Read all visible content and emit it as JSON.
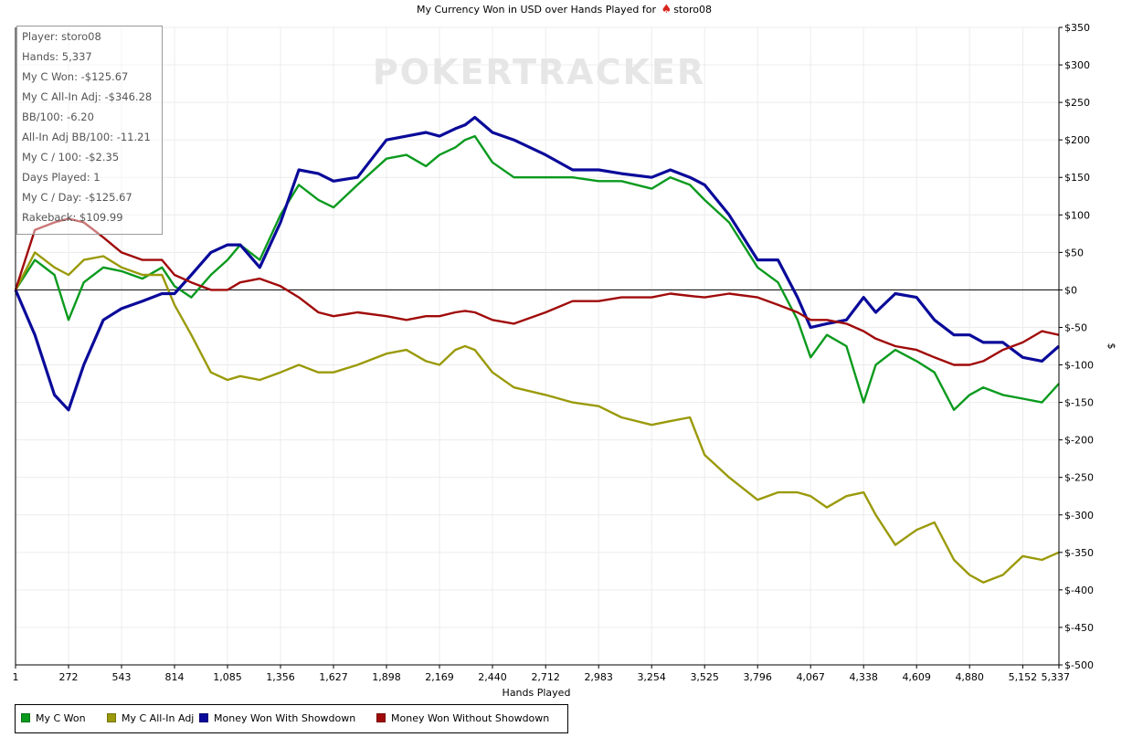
{
  "chart_data": {
    "type": "line",
    "title_prefix": "My Currency Won in USD over Hands Played for",
    "title_player": "storo08",
    "title_icon": "spade-icon",
    "watermark": "POKERTRACKER",
    "xlabel": "Hands Played",
    "ylabel": "$",
    "xlim": [
      1,
      5337
    ],
    "ylim": [
      -500,
      350
    ],
    "x_ticks": [
      1,
      272,
      543,
      814,
      1085,
      1356,
      1627,
      1898,
      2169,
      2440,
      2712,
      2983,
      3254,
      3525,
      3796,
      4067,
      4338,
      4609,
      4880,
      5152,
      5337
    ],
    "x_tick_labels": [
      "1",
      "272",
      "543",
      "814",
      "1,085",
      "1,356",
      "1,627",
      "1,898",
      "2,169",
      "2,440",
      "2,712",
      "2,983",
      "3,254",
      "3,525",
      "3,796",
      "4,067",
      "4,338",
      "4,609",
      "4,880",
      "5,152",
      "5,337"
    ],
    "y_ticks": [
      350,
      300,
      250,
      200,
      150,
      100,
      50,
      0,
      -50,
      -100,
      -150,
      -200,
      -250,
      -300,
      -350,
      -400,
      -450,
      -500
    ],
    "y_tick_labels": [
      "$350",
      "$300",
      "$250",
      "$200",
      "$150",
      "$100",
      "$50",
      "$0",
      "$-50",
      "$-100",
      "$-150",
      "$-200",
      "$-250",
      "$-300",
      "$-350",
      "$-400",
      "$-450",
      "$-500"
    ],
    "grid": true,
    "legend_position": "bottom-left",
    "x": [
      1,
      100,
      200,
      272,
      350,
      450,
      543,
      650,
      750,
      814,
      900,
      1000,
      1085,
      1150,
      1250,
      1356,
      1450,
      1550,
      1627,
      1750,
      1898,
      2000,
      2100,
      2169,
      2250,
      2300,
      2350,
      2440,
      2550,
      2712,
      2850,
      2983,
      3100,
      3254,
      3350,
      3450,
      3525,
      3650,
      3796,
      3900,
      4000,
      4067,
      4150,
      4250,
      4338,
      4400,
      4500,
      4609,
      4700,
      4800,
      4880,
      4950,
      5050,
      5152,
      5250,
      5337
    ],
    "series": [
      {
        "name": "My C Won",
        "color": "#0a9a1e",
        "values": [
          0,
          40,
          20,
          -40,
          10,
          30,
          25,
          15,
          30,
          5,
          -10,
          20,
          40,
          60,
          40,
          100,
          140,
          120,
          110,
          140,
          175,
          180,
          165,
          180,
          190,
          200,
          205,
          170,
          150,
          150,
          150,
          145,
          145,
          135,
          150,
          140,
          120,
          90,
          30,
          10,
          -40,
          -90,
          -60,
          -75,
          -150,
          -100,
          -80,
          -95,
          -110,
          -160,
          -140,
          -130,
          -140,
          -145,
          -150,
          -125
        ]
      },
      {
        "name": "My C All-In Adj",
        "color": "#9a9a0a",
        "values": [
          0,
          50,
          30,
          20,
          40,
          45,
          30,
          20,
          20,
          -20,
          -60,
          -110,
          -120,
          -115,
          -120,
          -110,
          -100,
          -110,
          -110,
          -100,
          -85,
          -80,
          -95,
          -100,
          -80,
          -75,
          -80,
          -110,
          -130,
          -140,
          -150,
          -155,
          -170,
          -180,
          -175,
          -170,
          -220,
          -250,
          -280,
          -270,
          -270,
          -275,
          -290,
          -275,
          -270,
          -300,
          -340,
          -320,
          -310,
          -360,
          -380,
          -390,
          -380,
          -355,
          -360,
          -350
        ]
      },
      {
        "name": "Money Won With Showdown",
        "color": "#0a0a9a",
        "values": [
          0,
          -60,
          -140,
          -160,
          -100,
          -40,
          -25,
          -15,
          -5,
          -5,
          20,
          50,
          60,
          60,
          30,
          90,
          160,
          155,
          145,
          150,
          200,
          205,
          210,
          205,
          215,
          220,
          230,
          210,
          200,
          180,
          160,
          160,
          155,
          150,
          160,
          150,
          140,
          100,
          40,
          40,
          -10,
          -50,
          -45,
          -40,
          -10,
          -30,
          -5,
          -10,
          -40,
          -60,
          -60,
          -70,
          -70,
          -90,
          -95,
          -75
        ]
      },
      {
        "name": "Money Won Without Showdown",
        "color": "#a00a0a",
        "values": [
          0,
          80,
          90,
          95,
          90,
          70,
          50,
          40,
          40,
          20,
          10,
          0,
          0,
          10,
          15,
          5,
          -10,
          -30,
          -35,
          -30,
          -35,
          -40,
          -35,
          -35,
          -30,
          -28,
          -30,
          -40,
          -45,
          -30,
          -15,
          -15,
          -10,
          -10,
          -5,
          -8,
          -10,
          -5,
          -10,
          -20,
          -30,
          -40,
          -40,
          -45,
          -55,
          -65,
          -75,
          -80,
          -90,
          -100,
          -100,
          -95,
          -80,
          -70,
          -55,
          -60
        ]
      }
    ]
  },
  "stats": [
    "Player: storo08",
    "Hands: 5,337",
    "My C Won: -$125.67",
    "My C All-In Adj: -$346.28",
    "BB/100: -6.20",
    "All-In Adj BB/100: -11.21",
    "My C / 100: -$2.35",
    "Days Played: 1",
    "My C / Day: -$125.67",
    "Rakeback: $109.99"
  ],
  "legend": [
    {
      "label": "My C Won",
      "color": "#0a9a1e"
    },
    {
      "label": "My C All-In Adj",
      "color": "#9a9a0a"
    },
    {
      "label": "Money Won With Showdown",
      "color": "#0a0a9a"
    },
    {
      "label": "Money Won Without Showdown",
      "color": "#a00a0a"
    }
  ]
}
